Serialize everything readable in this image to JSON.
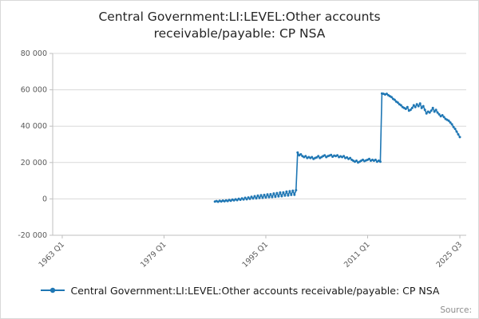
{
  "title": "Central Government:LI:LEVEL:Other accounts receivable/payable: CP NSA",
  "legend": {
    "label": "Central Government:LI:LEVEL:Other accounts receivable/payable: CP NSA"
  },
  "source_label": "Source:",
  "colors": {
    "line": "#1f77b4",
    "grid": "#d9d9d9",
    "axis": "#bfbfbf",
    "tick_text": "#595959",
    "title_text": "#262626"
  },
  "chart_data": {
    "type": "line",
    "title": "Central Government:LI:LEVEL:Other accounts receivable/payable: CP NSA",
    "xlabel": "",
    "ylabel": "",
    "grid": "horizontal",
    "legend_position": "bottom",
    "xlim": [
      1961.5,
      2026.5
    ],
    "ylim": [
      -20000,
      80000
    ],
    "yticks": [
      {
        "value": 80000,
        "label": "80 000"
      },
      {
        "value": 60000,
        "label": "60 000"
      },
      {
        "value": 40000,
        "label": "40 000"
      },
      {
        "value": 20000,
        "label": "20 000"
      },
      {
        "value": 0,
        "label": "0"
      },
      {
        "value": -20000,
        "label": "-20 000"
      }
    ],
    "xticks": [
      {
        "value": 1963.0,
        "label": "1963 Q1"
      },
      {
        "value": 1979.0,
        "label": "1979 Q1"
      },
      {
        "value": 1995.0,
        "label": "1995 Q1"
      },
      {
        "value": 2011.0,
        "label": "2011 Q1"
      },
      {
        "value": 2025.5,
        "label": "2025 Q3"
      }
    ],
    "series": [
      {
        "name": "Central Government:LI:LEVEL:Other accounts receivable/payable: CP NSA",
        "points": [
          [
            1987.0,
            -1500
          ],
          [
            1987.25,
            -1200
          ],
          [
            1987.5,
            -1600
          ],
          [
            1987.75,
            -1000
          ],
          [
            1988.0,
            -1400
          ],
          [
            1988.25,
            -900
          ],
          [
            1988.5,
            -1300
          ],
          [
            1988.75,
            -800
          ],
          [
            1989.0,
            -1200
          ],
          [
            1989.25,
            -600
          ],
          [
            1989.5,
            -1000
          ],
          [
            1989.75,
            -400
          ],
          [
            1990.0,
            -800
          ],
          [
            1990.25,
            -200
          ],
          [
            1990.5,
            -700
          ],
          [
            1990.75,
            100
          ],
          [
            1991.0,
            -500
          ],
          [
            1991.25,
            300
          ],
          [
            1991.5,
            -300
          ],
          [
            1991.75,
            600
          ],
          [
            1992.0,
            -200
          ],
          [
            1992.25,
            800
          ],
          [
            1992.5,
            0
          ],
          [
            1992.75,
            1200
          ],
          [
            1993.0,
            200
          ],
          [
            1993.25,
            1500
          ],
          [
            1993.5,
            300
          ],
          [
            1993.75,
            1800
          ],
          [
            1994.0,
            500
          ],
          [
            1994.25,
            2000
          ],
          [
            1994.5,
            600
          ],
          [
            1994.75,
            2200
          ],
          [
            1995.0,
            800
          ],
          [
            1995.25,
            2500
          ],
          [
            1995.5,
            900
          ],
          [
            1995.75,
            2600
          ],
          [
            1996.0,
            1000
          ],
          [
            1996.25,
            3000
          ],
          [
            1996.5,
            1200
          ],
          [
            1996.75,
            3200
          ],
          [
            1997.0,
            1400
          ],
          [
            1997.25,
            3500
          ],
          [
            1997.5,
            1500
          ],
          [
            1997.75,
            3600
          ],
          [
            1998.0,
            1800
          ],
          [
            1998.25,
            4000
          ],
          [
            1998.5,
            1900
          ],
          [
            1998.75,
            4200
          ],
          [
            1999.0,
            2200
          ],
          [
            1999.25,
            4500
          ],
          [
            1999.5,
            2300
          ],
          [
            1999.75,
            4800
          ],
          [
            2000.0,
            25500
          ],
          [
            2000.25,
            24000
          ],
          [
            2000.5,
            24500
          ],
          [
            2000.75,
            23500
          ],
          [
            2001.0,
            23000
          ],
          [
            2001.25,
            23500
          ],
          [
            2001.5,
            22500
          ],
          [
            2001.75,
            23000
          ],
          [
            2002.0,
            22500
          ],
          [
            2002.25,
            23000
          ],
          [
            2002.5,
            22000
          ],
          [
            2002.75,
            22500
          ],
          [
            2003.0,
            22800
          ],
          [
            2003.25,
            23500
          ],
          [
            2003.5,
            22500
          ],
          [
            2003.75,
            23000
          ],
          [
            2004.0,
            23500
          ],
          [
            2004.25,
            24000
          ],
          [
            2004.5,
            23000
          ],
          [
            2004.75,
            23500
          ],
          [
            2005.0,
            23800
          ],
          [
            2005.25,
            24200
          ],
          [
            2005.5,
            23200
          ],
          [
            2005.75,
            23800
          ],
          [
            2006.0,
            23500
          ],
          [
            2006.25,
            24000
          ],
          [
            2006.5,
            23000
          ],
          [
            2006.75,
            23400
          ],
          [
            2007.0,
            23000
          ],
          [
            2007.25,
            23500
          ],
          [
            2007.5,
            22500
          ],
          [
            2007.75,
            22800
          ],
          [
            2008.0,
            22000
          ],
          [
            2008.25,
            22500
          ],
          [
            2008.5,
            21500
          ],
          [
            2008.75,
            21000
          ],
          [
            2009.0,
            20500
          ],
          [
            2009.25,
            21000
          ],
          [
            2009.5,
            20000
          ],
          [
            2009.75,
            20500
          ],
          [
            2010.0,
            21000
          ],
          [
            2010.25,
            21500
          ],
          [
            2010.5,
            20800
          ],
          [
            2010.75,
            21200
          ],
          [
            2011.0,
            21500
          ],
          [
            2011.25,
            22000
          ],
          [
            2011.5,
            21000
          ],
          [
            2011.75,
            21500
          ],
          [
            2012.0,
            21000
          ],
          [
            2012.25,
            21500
          ],
          [
            2012.5,
            20500
          ],
          [
            2012.75,
            21000
          ],
          [
            2013.0,
            20500
          ],
          [
            2013.25,
            58000
          ],
          [
            2013.5,
            57800
          ],
          [
            2013.75,
            57400
          ],
          [
            2014.0,
            57800
          ],
          [
            2014.25,
            57000
          ],
          [
            2014.5,
            56500
          ],
          [
            2014.75,
            56000
          ],
          [
            2015.0,
            55000
          ],
          [
            2015.25,
            54500
          ],
          [
            2015.5,
            53500
          ],
          [
            2015.75,
            53000
          ],
          [
            2016.0,
            52000
          ],
          [
            2016.25,
            51500
          ],
          [
            2016.5,
            50500
          ],
          [
            2016.75,
            50000
          ],
          [
            2017.0,
            49500
          ],
          [
            2017.25,
            50500
          ],
          [
            2017.5,
            48500
          ],
          [
            2017.75,
            49000
          ],
          [
            2018.0,
            50000
          ],
          [
            2018.25,
            51500
          ],
          [
            2018.5,
            50500
          ],
          [
            2018.75,
            52000
          ],
          [
            2019.0,
            51000
          ],
          [
            2019.25,
            52500
          ],
          [
            2019.5,
            50000
          ],
          [
            2019.75,
            51000
          ],
          [
            2020.0,
            49000
          ],
          [
            2020.25,
            47000
          ],
          [
            2020.5,
            48000
          ],
          [
            2020.75,
            47500
          ],
          [
            2021.0,
            48500
          ],
          [
            2021.25,
            50000
          ],
          [
            2021.5,
            48000
          ],
          [
            2021.75,
            49000
          ],
          [
            2022.0,
            47500
          ],
          [
            2022.25,
            46500
          ],
          [
            2022.5,
            45500
          ],
          [
            2022.75,
            46000
          ],
          [
            2023.0,
            45000
          ],
          [
            2023.25,
            44000
          ],
          [
            2023.5,
            43500
          ],
          [
            2023.75,
            43000
          ],
          [
            2024.0,
            42000
          ],
          [
            2024.25,
            41000
          ],
          [
            2024.5,
            39500
          ],
          [
            2024.75,
            38500
          ],
          [
            2025.0,
            37000
          ],
          [
            2025.25,
            35500
          ],
          [
            2025.5,
            34000
          ]
        ]
      }
    ]
  }
}
